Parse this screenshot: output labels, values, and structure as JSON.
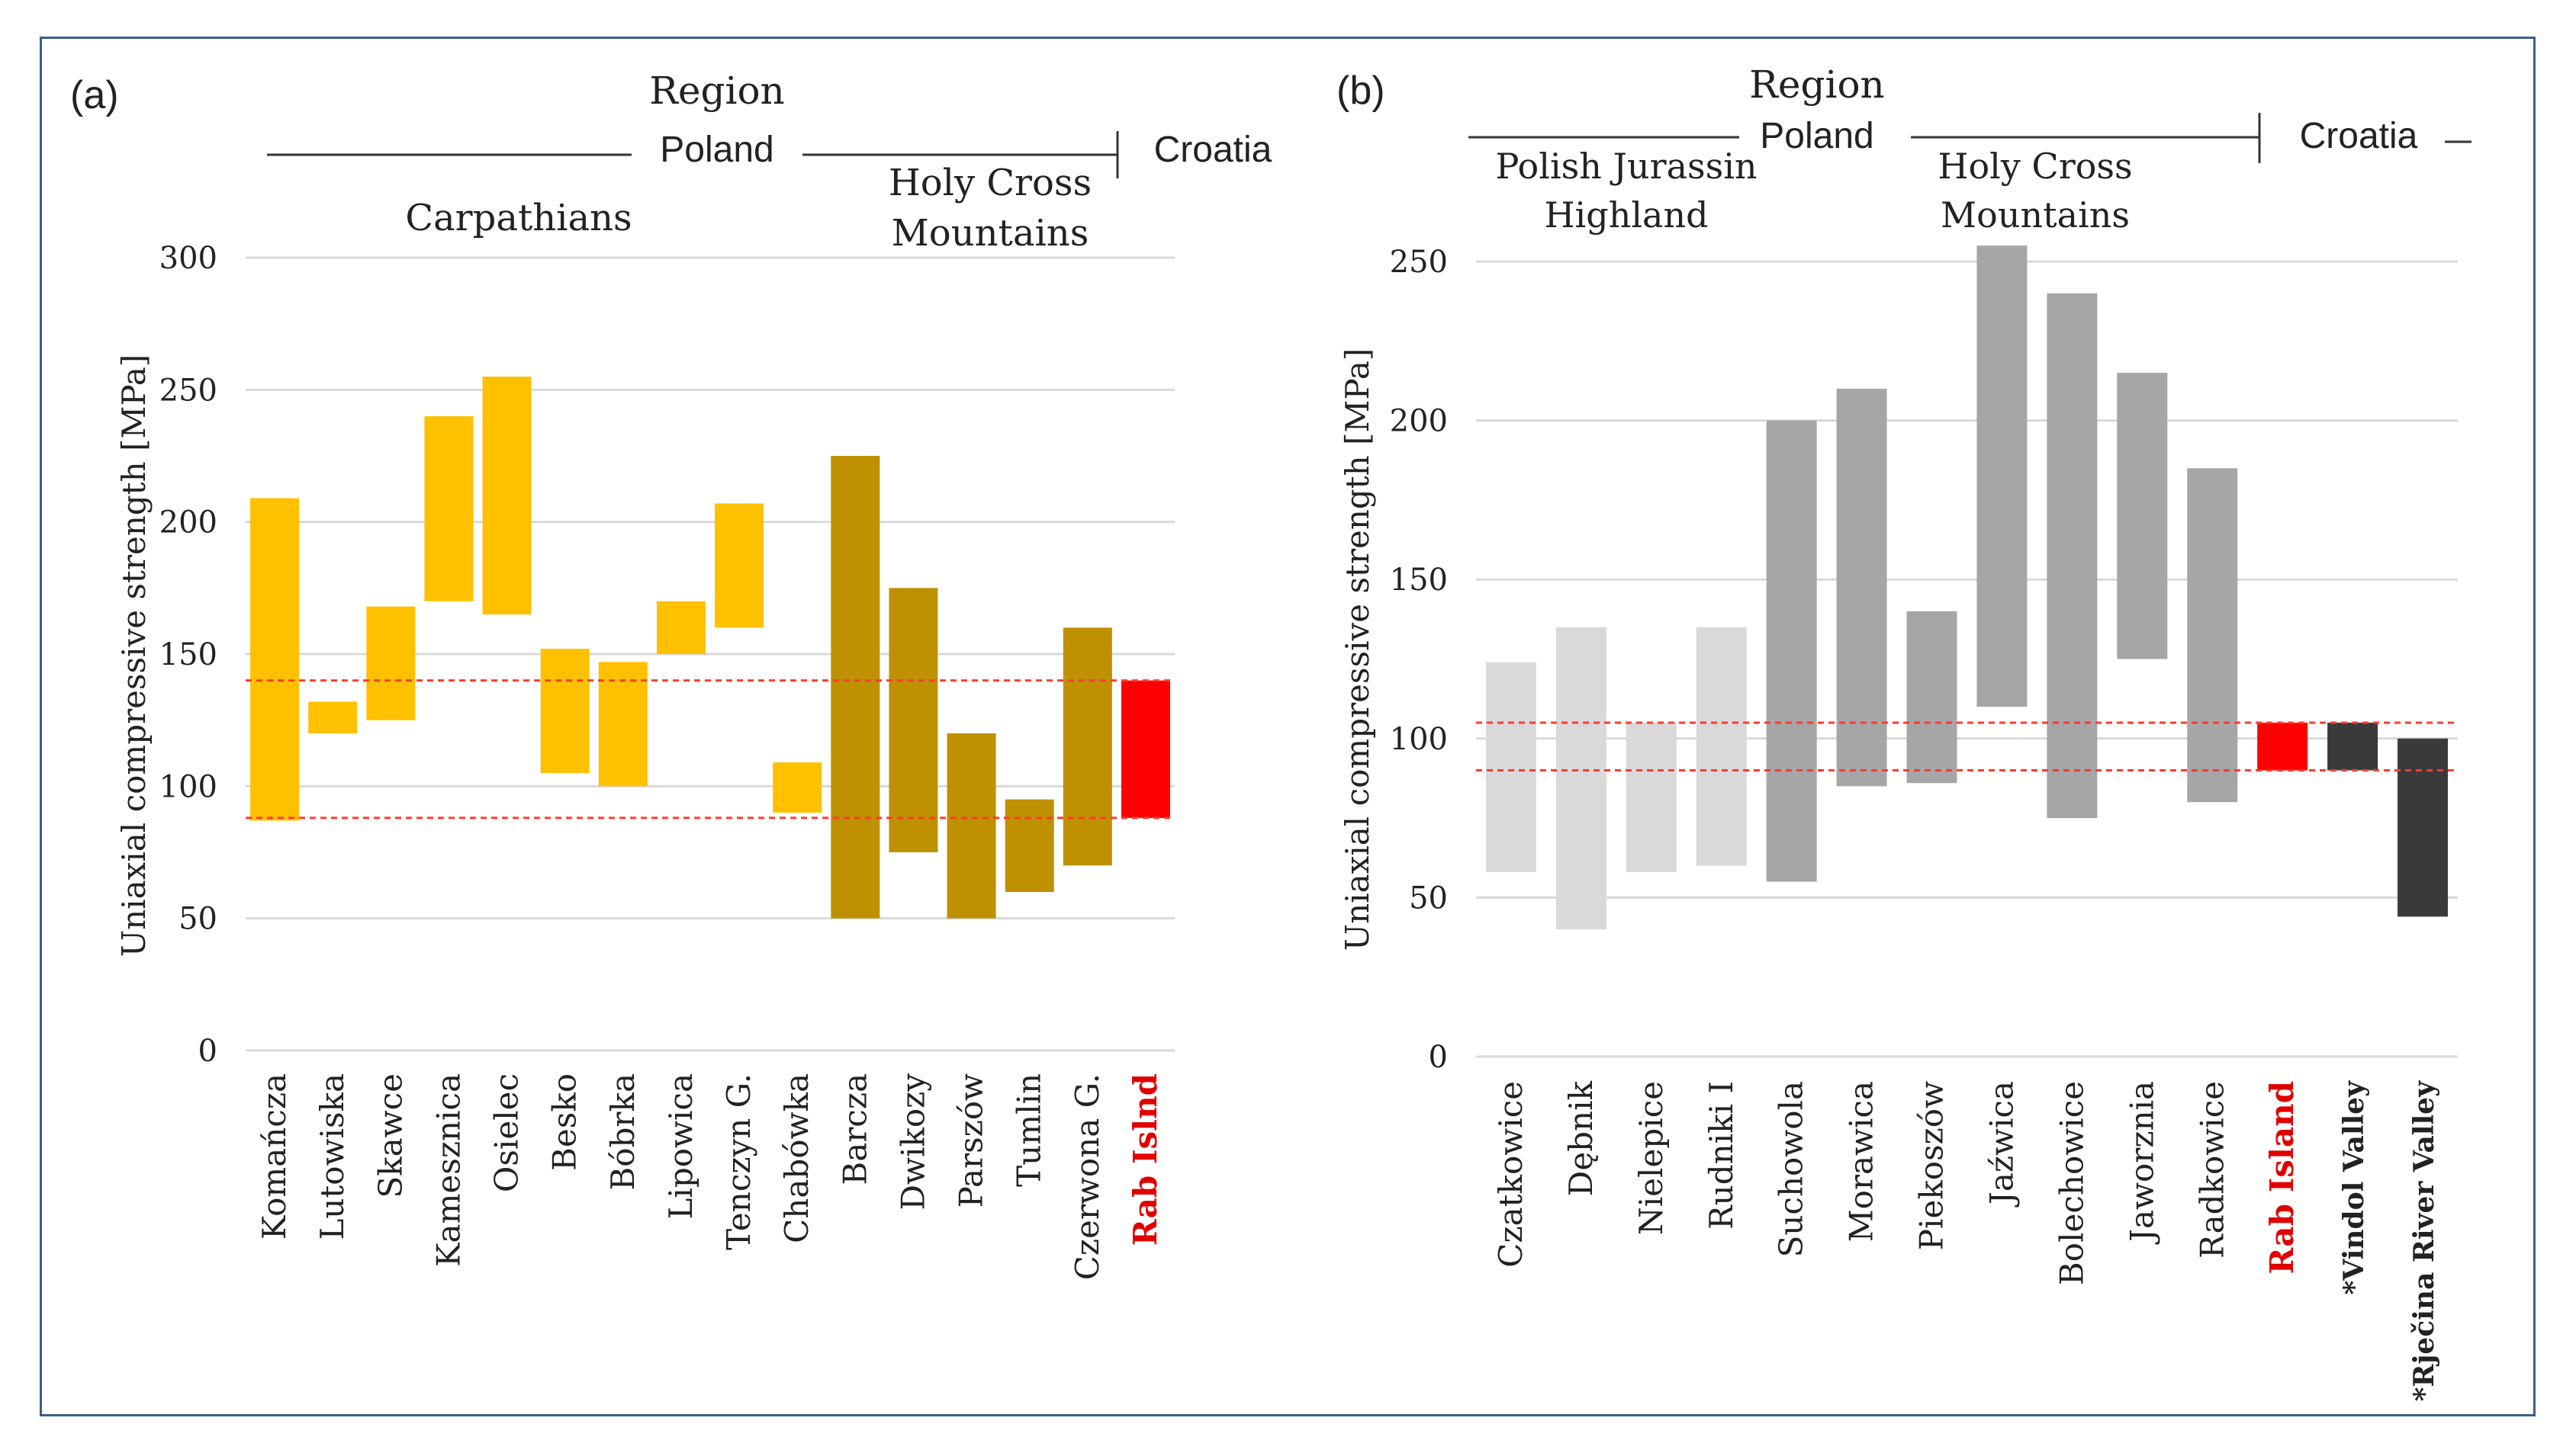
{
  "chart_data": [
    {
      "panel_label": "(a)",
      "type": "bar",
      "bar_style": "floating-range",
      "ylabel": "Uniaxial compressive strength [MPa]",
      "ylim": [
        0,
        300
      ],
      "yticks": [
        0,
        50,
        100,
        150,
        200,
        250,
        300
      ],
      "grid": true,
      "reference_lines": [
        88,
        140
      ],
      "region_header": {
        "title": "Region",
        "country_primary": "Poland",
        "country_secondary": "Croatia",
        "subregions": [
          "Carpathians",
          "Holy Cross Mountains"
        ]
      },
      "categories": [
        {
          "name": "Komańcza",
          "low": 87,
          "high": 209,
          "color": "#ffc000",
          "label_color": "#222222"
        },
        {
          "name": "Lutowiska",
          "low": 120,
          "high": 132,
          "color": "#ffc000",
          "label_color": "#222222"
        },
        {
          "name": "Skawce",
          "low": 125,
          "high": 168,
          "color": "#ffc000",
          "label_color": "#222222"
        },
        {
          "name": "Kamesznica",
          "low": 170,
          "high": 240,
          "color": "#ffc000",
          "label_color": "#222222"
        },
        {
          "name": "Osielec",
          "low": 165,
          "high": 255,
          "color": "#ffc000",
          "label_color": "#222222"
        },
        {
          "name": "Besko",
          "low": 105,
          "high": 152,
          "color": "#ffc000",
          "label_color": "#222222"
        },
        {
          "name": "Bóbrka",
          "low": 100,
          "high": 147,
          "color": "#ffc000",
          "label_color": "#222222"
        },
        {
          "name": "Lipowica",
          "low": 150,
          "high": 170,
          "color": "#ffc000",
          "label_color": "#222222"
        },
        {
          "name": "Tenczyn G.",
          "low": 160,
          "high": 207,
          "color": "#ffc000",
          "label_color": "#222222"
        },
        {
          "name": "Chabówka",
          "low": 90,
          "high": 109,
          "color": "#ffc000",
          "label_color": "#222222"
        },
        {
          "name": "Barcza",
          "low": 50,
          "high": 225,
          "color": "#bf9000",
          "label_color": "#222222"
        },
        {
          "name": "Dwikozy",
          "low": 75,
          "high": 175,
          "color": "#bf9000",
          "label_color": "#222222"
        },
        {
          "name": "Parszów",
          "low": 50,
          "high": 120,
          "color": "#bf9000",
          "label_color": "#222222"
        },
        {
          "name": "Tumlin",
          "low": 60,
          "high": 95,
          "color": "#bf9000",
          "label_color": "#222222"
        },
        {
          "name": "Czerwona G.",
          "low": 70,
          "high": 160,
          "color": "#bf9000",
          "label_color": "#222222"
        },
        {
          "name": "Rab Islnd",
          "low": 88,
          "high": 140,
          "color": "#ff0000",
          "label_color": "#e00000"
        }
      ]
    },
    {
      "panel_label": "(b)",
      "type": "bar",
      "bar_style": "floating-range",
      "ylabel": "Uniaxial compressive strength [MPa]",
      "ylim": [
        0,
        250
      ],
      "yticks": [
        0,
        50,
        100,
        150,
        200,
        250
      ],
      "grid": true,
      "reference_lines": [
        90,
        105
      ],
      "region_header": {
        "title": "Region",
        "country_primary": "Poland",
        "country_secondary": "Croatia",
        "subregions": [
          "Polish Jurassin Highland",
          "Holy Cross Mountains"
        ]
      },
      "categories": [
        {
          "name": "Czatkowice",
          "low": 58,
          "high": 124,
          "color": "#d9d9d9",
          "label_color": "#222222"
        },
        {
          "name": "Dębnik",
          "low": 40,
          "high": 135,
          "color": "#d9d9d9",
          "label_color": "#222222"
        },
        {
          "name": "Nielepice",
          "low": 58,
          "high": 105,
          "color": "#d9d9d9",
          "label_color": "#222222"
        },
        {
          "name": "Rudniki I",
          "low": 60,
          "high": 135,
          "color": "#d9d9d9",
          "label_color": "#222222"
        },
        {
          "name": "Suchowola",
          "low": 55,
          "high": 200,
          "color": "#a6a6a6",
          "label_color": "#222222"
        },
        {
          "name": "Morawica",
          "low": 85,
          "high": 210,
          "color": "#a6a6a6",
          "label_color": "#222222"
        },
        {
          "name": "Piekoszów",
          "low": 86,
          "high": 140,
          "color": "#a6a6a6",
          "label_color": "#222222"
        },
        {
          "name": "Jaźwica",
          "low": 110,
          "high": 255,
          "color": "#a6a6a6",
          "label_color": "#222222"
        },
        {
          "name": "Bolechowice",
          "low": 75,
          "high": 240,
          "color": "#a6a6a6",
          "label_color": "#222222"
        },
        {
          "name": "Jaworznia",
          "low": 125,
          "high": 215,
          "color": "#a6a6a6",
          "label_color": "#222222"
        },
        {
          "name": "Radkowice",
          "low": 80,
          "high": 185,
          "color": "#a6a6a6",
          "label_color": "#222222"
        },
        {
          "name": "Rab Island",
          "low": 90,
          "high": 105,
          "color": "#ff0000",
          "label_color": "#e00000"
        },
        {
          "name": "*Vindol Valley",
          "low": 90,
          "high": 105,
          "color": "#3a3a3a",
          "label_color": "#222222"
        },
        {
          "name": "*Rječina River Valley",
          "low": 44,
          "high": 100,
          "color": "#3a3a3a",
          "label_color": "#222222"
        }
      ]
    }
  ]
}
